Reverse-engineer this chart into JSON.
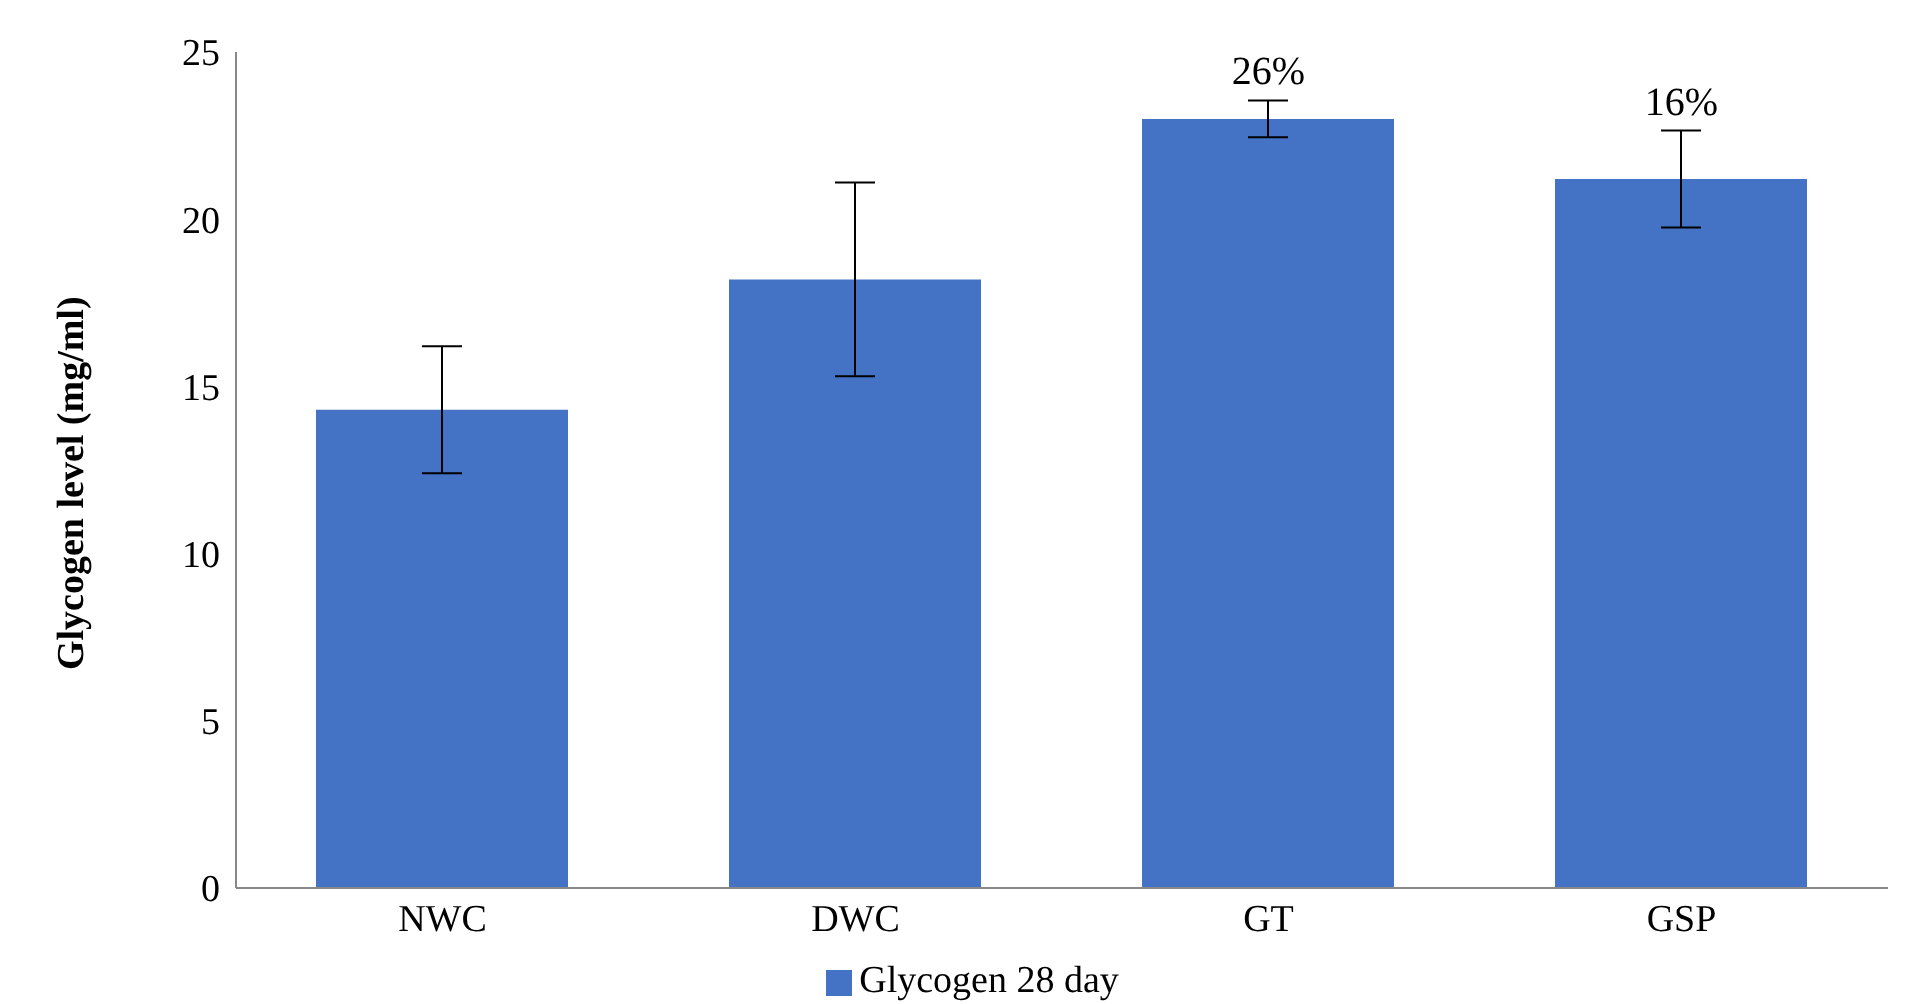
{
  "chart_data": {
    "type": "bar",
    "ylabel": "Glycogen level (mg/ml)",
    "categories": [
      "NWC",
      "DWC",
      "GT",
      "GSP"
    ],
    "series": [
      {
        "name": "Glycogen 28 day",
        "color": "#4472c4",
        "values": [
          14.3,
          18.2,
          23.0,
          21.2
        ],
        "errors": [
          1.9,
          2.9,
          0.55,
          1.45
        ]
      }
    ],
    "ylim": [
      0,
      25
    ],
    "yticks": [
      0,
      5,
      10,
      15,
      20,
      25
    ],
    "grid": false,
    "legend": "bottom",
    "annotations": [
      {
        "text": "26%",
        "x": "GT",
        "y": 23.0
      },
      {
        "text": "16%",
        "x": "GSP",
        "y": 21.2
      }
    ]
  }
}
